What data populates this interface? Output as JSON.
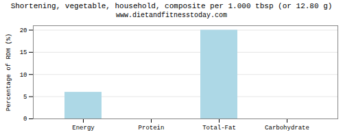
{
  "chart_data": {
    "type": "bar",
    "title": "Shortening, vegetable, household, composite per 1.000 tbsp (or 12.80 g)",
    "subtitle": "www.dietandfitnesstoday.com",
    "categories": [
      "Energy",
      "Protein",
      "Total-Fat",
      "Carbohydrate"
    ],
    "values": [
      6,
      0,
      20,
      0
    ],
    "color": "#add8e6",
    "ylabel": "Percentage of RDH (%)",
    "ylim": [
      0,
      21
    ],
    "yticks": [
      0,
      5,
      10,
      15,
      20
    ],
    "grid": true
  }
}
